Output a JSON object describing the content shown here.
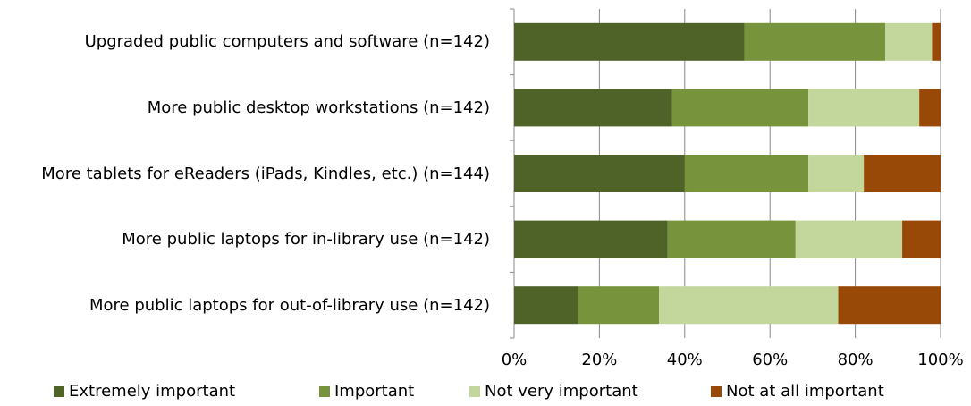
{
  "chart_data": {
    "type": "stacked_barh",
    "categories": [
      "Upgraded public computers and software (n=142)",
      "More public desktop workstations (n=142)",
      "More tablets for eReaders (iPads, Kindles, etc.) (n=144)",
      "More public laptops for in-library use (n=142)",
      "More public laptops for out-of-library use (n=142)"
    ],
    "series": [
      {
        "name": "Extremely important",
        "color": "#4f6228",
        "values": [
          54,
          37,
          40,
          36,
          15
        ]
      },
      {
        "name": "Important",
        "color": "#77933c",
        "values": [
          33,
          32,
          29,
          30,
          19
        ]
      },
      {
        "name": "Not very important",
        "color": "#c3d69b",
        "values": [
          11,
          26,
          13,
          25,
          42
        ]
      },
      {
        "name": "Not at all important",
        "color": "#984807",
        "values": [
          2,
          5,
          18,
          9,
          24
        ]
      }
    ],
    "xlim": [
      0,
      100
    ],
    "xticks": [
      {
        "value": 0,
        "label": "0%"
      },
      {
        "value": 20,
        "label": "20%"
      },
      {
        "value": 40,
        "label": "40%"
      },
      {
        "value": 60,
        "label": "60%"
      },
      {
        "value": 80,
        "label": "80%"
      },
      {
        "value": 100,
        "label": "100%"
      }
    ],
    "grid": true,
    "legend": "bottom"
  }
}
